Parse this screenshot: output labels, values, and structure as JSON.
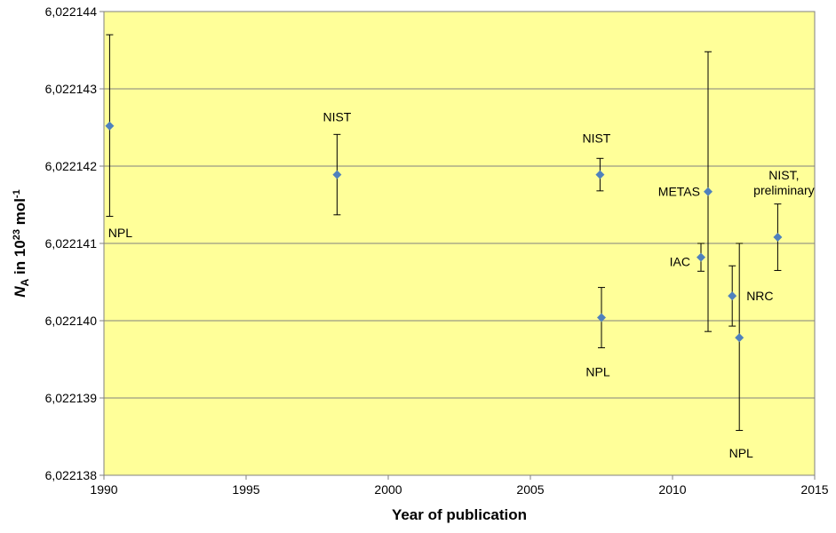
{
  "chart_data": {
    "type": "scatter",
    "title": "",
    "xlabel": "Year of publication",
    "ylabel": {
      "symbol": "N",
      "subscript": "A",
      "text_before_exp": " in 10",
      "exponent_1": "23",
      "text_before_exp2": " mol",
      "exponent_2": "-1"
    },
    "xlim": [
      1990,
      2015
    ],
    "ylim": [
      6.022138,
      6.022144
    ],
    "x_ticks": [
      1990,
      1995,
      2000,
      2005,
      2010,
      2015
    ],
    "x_tick_labels": [
      "1990",
      "1995",
      "2000",
      "2005",
      "2010",
      "2015"
    ],
    "y_ticks": [
      6.022138,
      6.022139,
      6.02214,
      6.022141,
      6.022142,
      6.022143,
      6.022144
    ],
    "y_tick_labels": [
      "6,022138",
      "6,022139",
      "6,022140",
      "6,022141",
      "6,022142",
      "6,022143",
      "6,022144"
    ],
    "grid": "horizontal",
    "legend": "none",
    "colors": {
      "plot_background": "#FFFF99",
      "marker": "#4F81BD",
      "gridline": "#808080",
      "error_bar": "#000000"
    },
    "marker": "diamond",
    "points": [
      {
        "label": [
          "NPL"
        ],
        "x": 1990.2,
        "y": 6.02214252,
        "err_low": 6.02214135,
        "err_high": 6.0221437
      },
      {
        "label": [
          "NIST"
        ],
        "x": 1998.2,
        "y": 6.02214189,
        "err_low": 6.02214137,
        "err_high": 6.02214241
      },
      {
        "label": [
          "NIST"
        ],
        "x": 2007.45,
        "y": 6.02214189,
        "err_low": 6.02214168,
        "err_high": 6.0221421
      },
      {
        "label": [
          "NPL"
        ],
        "x": 2007.5,
        "y": 6.02214004,
        "err_low": 6.02213965,
        "err_high": 6.02214043
      },
      {
        "label": [
          "METAS"
        ],
        "x": 2011.25,
        "y": 6.02214167,
        "err_low": 6.02213986,
        "err_high": 6.02214348
      },
      {
        "label": [
          "IAC"
        ],
        "x": 2011.0,
        "y": 6.02214082,
        "err_low": 6.02214064,
        "err_high": 6.022141
      },
      {
        "label": [
          "NRC"
        ],
        "x": 2012.1,
        "y": 6.02214032,
        "err_low": 6.02213993,
        "err_high": 6.02214071
      },
      {
        "label": [
          "NPL"
        ],
        "x": 2012.35,
        "y": 6.02213978,
        "err_low": 6.02213858,
        "err_high": 6.022141
      },
      {
        "label": [
          "NIST,",
          "preliminary"
        ],
        "x": 2013.7,
        "y": 6.02214108,
        "err_low": 6.02214065,
        "err_high": 6.02214151
      }
    ]
  }
}
